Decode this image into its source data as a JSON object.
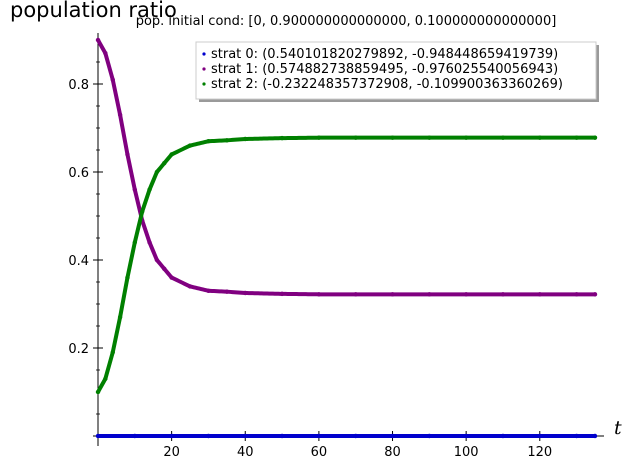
{
  "chart_data": {
    "type": "scatter",
    "title": "population ratio",
    "subtitle": "pop. initial cond: [0, 0.900000000000000, 0.100000000000000]",
    "xlabel": "t",
    "ylabel": "",
    "xlim": [
      0,
      135
    ],
    "ylim": [
      0,
      0.9
    ],
    "x_ticks": [
      20,
      40,
      60,
      80,
      100,
      120
    ],
    "x_tick_labels": [
      "20",
      "40",
      "60",
      "80",
      "100",
      "120"
    ],
    "y_ticks": [
      0.2,
      0.4,
      0.6,
      0.8
    ],
    "y_tick_labels": [
      "0.2",
      "0.4",
      "0.6",
      "0.8"
    ],
    "grid": false,
    "legend_position": "top-right",
    "series": [
      {
        "name": "strat 0: (0.540101820279892, -0.948448659419739)",
        "color": "#0000cd",
        "x": [
          0,
          10,
          20,
          30,
          40,
          50,
          60,
          70,
          80,
          90,
          100,
          110,
          120,
          130,
          135
        ],
        "y": [
          0,
          0,
          0,
          0,
          0,
          0,
          0,
          0,
          0,
          0,
          0,
          0,
          0,
          0,
          0
        ]
      },
      {
        "name": "strat 1: (0.574882738859495, -0.976025540056943)",
        "color": "#800080",
        "x": [
          0,
          2,
          4,
          6,
          8,
          10,
          12,
          14,
          16,
          18,
          20,
          25,
          30,
          35,
          40,
          50,
          60,
          70,
          80,
          90,
          100,
          110,
          120,
          130,
          135
        ],
        "y": [
          0.9,
          0.87,
          0.81,
          0.73,
          0.64,
          0.56,
          0.49,
          0.44,
          0.4,
          0.38,
          0.36,
          0.34,
          0.33,
          0.328,
          0.325,
          0.323,
          0.322,
          0.322,
          0.322,
          0.322,
          0.322,
          0.322,
          0.322,
          0.322,
          0.322
        ]
      },
      {
        "name": "strat 2: (-0.232248357372908, -0.109900363360269)",
        "color": "#008000",
        "x": [
          0,
          2,
          4,
          6,
          8,
          10,
          12,
          14,
          16,
          18,
          20,
          25,
          30,
          35,
          40,
          50,
          60,
          70,
          80,
          90,
          100,
          110,
          120,
          130,
          135
        ],
        "y": [
          0.1,
          0.13,
          0.19,
          0.27,
          0.36,
          0.44,
          0.51,
          0.56,
          0.6,
          0.62,
          0.64,
          0.66,
          0.67,
          0.672,
          0.675,
          0.677,
          0.678,
          0.678,
          0.678,
          0.678,
          0.678,
          0.678,
          0.678,
          0.678,
          0.678
        ]
      }
    ]
  }
}
